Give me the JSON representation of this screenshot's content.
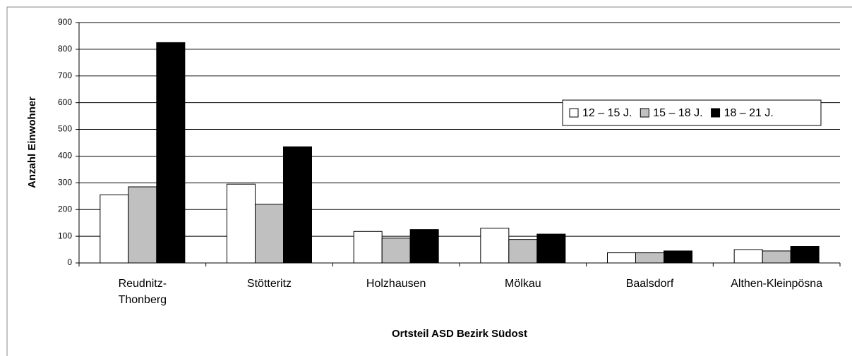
{
  "chart_data": {
    "type": "bar",
    "categories": [
      "Reudnitz-Thonberg",
      "Stötteritz",
      "Holzhausen",
      "Mölkau",
      "Baalsdorf",
      "Althen-Kleinpösna"
    ],
    "series": [
      {
        "name": "12 – 15 J.",
        "color": "#ffffff",
        "values": [
          255,
          295,
          118,
          130,
          38,
          50
        ]
      },
      {
        "name": "15 – 18 J.",
        "color": "#c0c0c0",
        "values": [
          285,
          220,
          93,
          88,
          38,
          45
        ]
      },
      {
        "name": "18 – 21 J.",
        "color": "#000000",
        "values": [
          825,
          435,
          125,
          108,
          45,
          62
        ]
      }
    ],
    "ylim": [
      0,
      900
    ],
    "yticks": [
      0,
      100,
      200,
      300,
      400,
      500,
      600,
      700,
      800,
      900
    ],
    "grid": true,
    "ylabel": "Anzahl Einwohner",
    "xlabel": "Ortsteil ASD Bezirk Südost"
  }
}
